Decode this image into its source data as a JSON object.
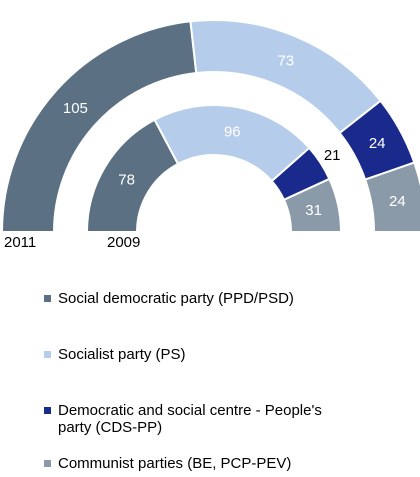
{
  "chart_data": {
    "type": "pie",
    "variant": "concentric-semicircle-donut",
    "rings": [
      {
        "label": "2011",
        "values": [
          105,
          73,
          24,
          24
        ]
      },
      {
        "label": "2009",
        "values": [
          78,
          96,
          21,
          31
        ]
      }
    ],
    "series": [
      {
        "name": "Social democratic party (PPD/PSD)",
        "color": "#5b7083"
      },
      {
        "name": "Socialist party (PS)",
        "color": "#b5cdea"
      },
      {
        "name": "Democratic and social centre - People's party (CDS-PP)",
        "color": "#1a2a8c"
      },
      {
        "name": "Communist parties (BE, PCP-PEV)",
        "color": "#8b9aa8"
      }
    ],
    "legend_position": "bottom"
  }
}
